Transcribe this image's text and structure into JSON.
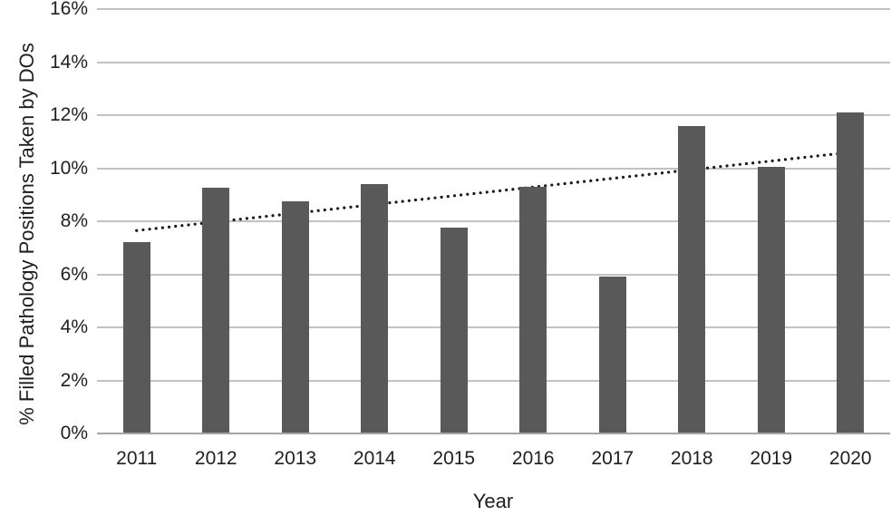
{
  "chart_data": {
    "type": "bar",
    "title": "",
    "xlabel": "Year",
    "ylabel": "% Filled Pathology Positions Taken by DOs",
    "categories": [
      "2011",
      "2012",
      "2013",
      "2014",
      "2015",
      "2016",
      "2017",
      "2018",
      "2019",
      "2020"
    ],
    "values": [
      7.2,
      9.25,
      8.75,
      9.4,
      7.75,
      9.3,
      5.9,
      11.6,
      10.05,
      12.1
    ],
    "series": [
      {
        "name": "% Filled Pathology Positions Taken by DOs",
        "values": [
          7.2,
          9.25,
          8.75,
          9.4,
          7.75,
          9.3,
          5.9,
          11.6,
          10.05,
          12.1
        ]
      }
    ],
    "ylim": [
      0,
      16
    ],
    "ytick_step": 2,
    "ytick_labels": [
      "0%",
      "2%",
      "4%",
      "6%",
      "8%",
      "10%",
      "12%",
      "14%",
      "16%"
    ],
    "grid": true,
    "legend": "none",
    "trendline": {
      "type": "linear",
      "style": "dotted",
      "start_value": 7.65,
      "end_value": 10.6
    },
    "colors": {
      "bar": "#595959",
      "gridline": "#c2c2c2",
      "axis_line": "#a6a6a6",
      "trendline": "#1a1a1a",
      "text": "#1f1f1f"
    }
  }
}
